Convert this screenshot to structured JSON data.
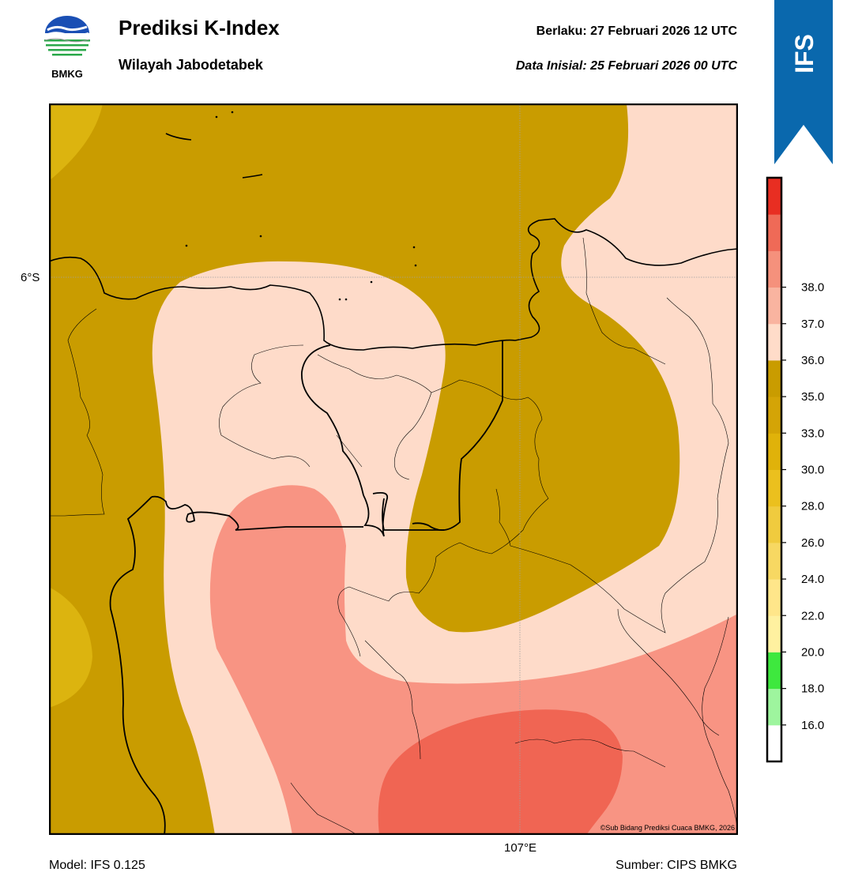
{
  "header": {
    "logo_text": "BMKG",
    "title": "Prediksi K-Index",
    "subtitle": "Wilayah Jabodetabek",
    "valid_label": "Berlaku:  27 Februari 2026 12 UTC",
    "init_label": "Data Inisial:  25 Februari 2026 00 UTC",
    "model_badge": "IFS"
  },
  "map": {
    "lat_label": "6°S",
    "lon_label": "107°E",
    "copyright": "©Sub Bidang Prediksi Cuaca BMKG, 2026"
  },
  "footer": {
    "model": "Model: IFS 0.125",
    "source": "Sumber: CIPS BMKG"
  },
  "colorbar": {
    "tick_labels": [
      "16.0",
      "18.0",
      "20.0",
      "22.0",
      "24.0",
      "26.0",
      "28.0",
      "30.0",
      "33.0",
      "35.0",
      "36.0",
      "37.0",
      "38.0"
    ],
    "band_colors": [
      "#ffffff",
      "#9ef59e",
      "#3ee83e",
      "#fff1a0",
      "#ffe68a",
      "#f7d862",
      "#f0cb3e",
      "#ebc01e",
      "#e0b20a",
      "#d4a406",
      "#c99c00",
      "#ffdcc9",
      "#f9b4a0",
      "#f5917c",
      "#ef6a57",
      "#e82e22"
    ]
  },
  "legend_colors": {
    "ki_30_33": "#dcb40f",
    "ki_33_35": "#c99c00",
    "ki_35_36": "#fedbc9",
    "ki_36_37": "#f89483",
    "ki_37_38": "#f06553"
  }
}
